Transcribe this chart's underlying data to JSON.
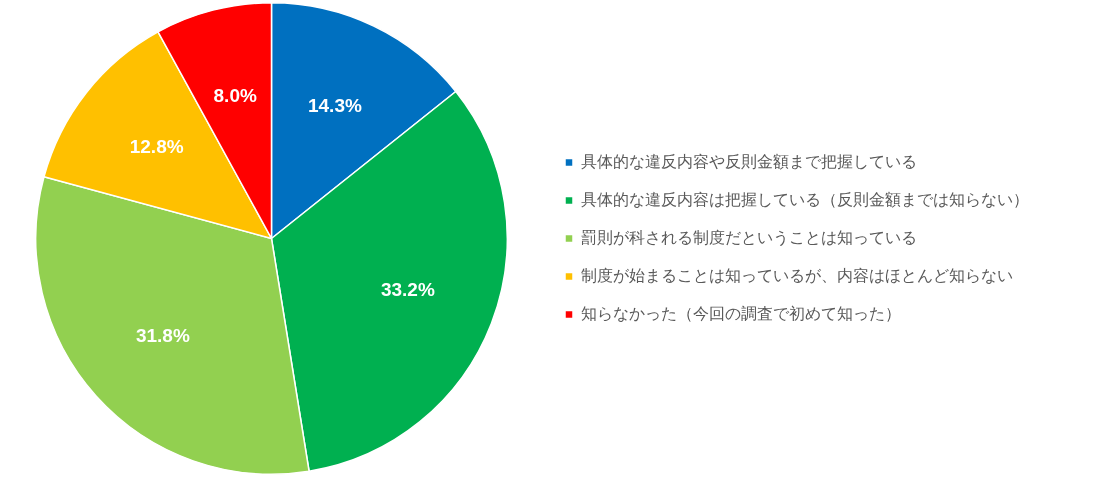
{
  "chart_data": {
    "type": "pie",
    "categories": [
      "具体的な違反内容や反則金額まで把握している",
      "具体的な違反内容は把握している（反則金額までは知らない）",
      "罰則が科される制度だということは知っている",
      "制度が始まることは知っているが、内容はほとんど知らない",
      "知らなかった（今回の調査で初めて知った）"
    ],
    "values": [
      14.3,
      33.2,
      31.8,
      12.8,
      8.0
    ],
    "value_labels": [
      "14.3%",
      "33.2%",
      "31.8%",
      "12.8%",
      "8.0%"
    ],
    "colors": [
      "#0070c0",
      "#00b050",
      "#92d050",
      "#ffc000",
      "#ff0000"
    ],
    "legend": "right"
  }
}
